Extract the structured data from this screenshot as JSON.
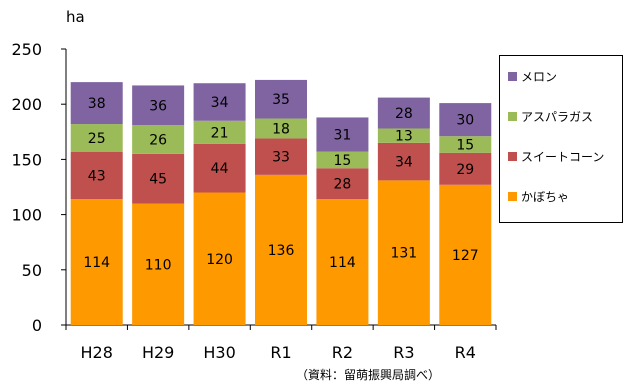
{
  "chart_data": {
    "type": "bar",
    "stacked": true,
    "title": "",
    "ylabel": "ha",
    "xlabel": "",
    "ylim": [
      0,
      250
    ],
    "yticks": [
      0,
      50,
      100,
      150,
      200,
      250
    ],
    "grid": false,
    "legend_position": "right",
    "categories": [
      "H28",
      "H29",
      "H30",
      "R1",
      "R2",
      "R3",
      "R4"
    ],
    "series": [
      {
        "name": "かぼちゃ",
        "color": "#ff9900",
        "values": [
          114,
          110,
          120,
          136,
          114,
          131,
          127
        ]
      },
      {
        "name": "スイートコーン",
        "color": "#c0504d",
        "values": [
          43,
          45,
          44,
          33,
          28,
          34,
          29
        ]
      },
      {
        "name": "アスパラガス",
        "color": "#9bbb59",
        "values": [
          25,
          26,
          21,
          18,
          15,
          13,
          15
        ]
      },
      {
        "name": "メロン",
        "color": "#8064a2",
        "values": [
          38,
          36,
          34,
          35,
          31,
          28,
          30
        ]
      }
    ],
    "legend_order": [
      "メロン",
      "アスパラガス",
      "スイートコーン",
      "かぼちゃ"
    ]
  },
  "source_note": "（資料：留萌振興局調べ）"
}
